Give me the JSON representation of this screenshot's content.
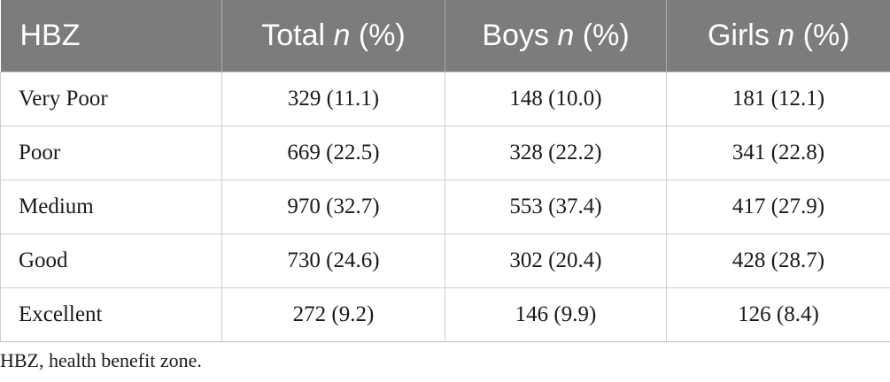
{
  "table": {
    "header": {
      "col0": "HBZ",
      "col1_label": "Total",
      "col2_label": "Boys",
      "col3_label": "Girls",
      "n_symbol": "n",
      "pct_suffix": "(%)"
    },
    "rows": [
      {
        "label": "Very Poor",
        "total": "329 (11.1)",
        "boys": "148 (10.0)",
        "girls": "181 (12.1)"
      },
      {
        "label": "Poor",
        "total": "669 (22.5)",
        "boys": "328 (22.2)",
        "girls": "341 (22.8)"
      },
      {
        "label": "Medium",
        "total": "970 (32.7)",
        "boys": "553 (37.4)",
        "girls": "417 (27.9)"
      },
      {
        "label": "Good",
        "total": "730 (24.6)",
        "boys": "302 (20.4)",
        "girls": "428 (28.7)"
      },
      {
        "label": "Excellent",
        "total": "272 (9.2)",
        "boys": "146 (9.9)",
        "girls": "126 (8.4)"
      }
    ]
  },
  "footnote": "HBZ, health benefit zone.",
  "colors": {
    "header_bg": "#7a7c7e",
    "header_text": "#ffffff",
    "grid": "#cfcfcf"
  }
}
